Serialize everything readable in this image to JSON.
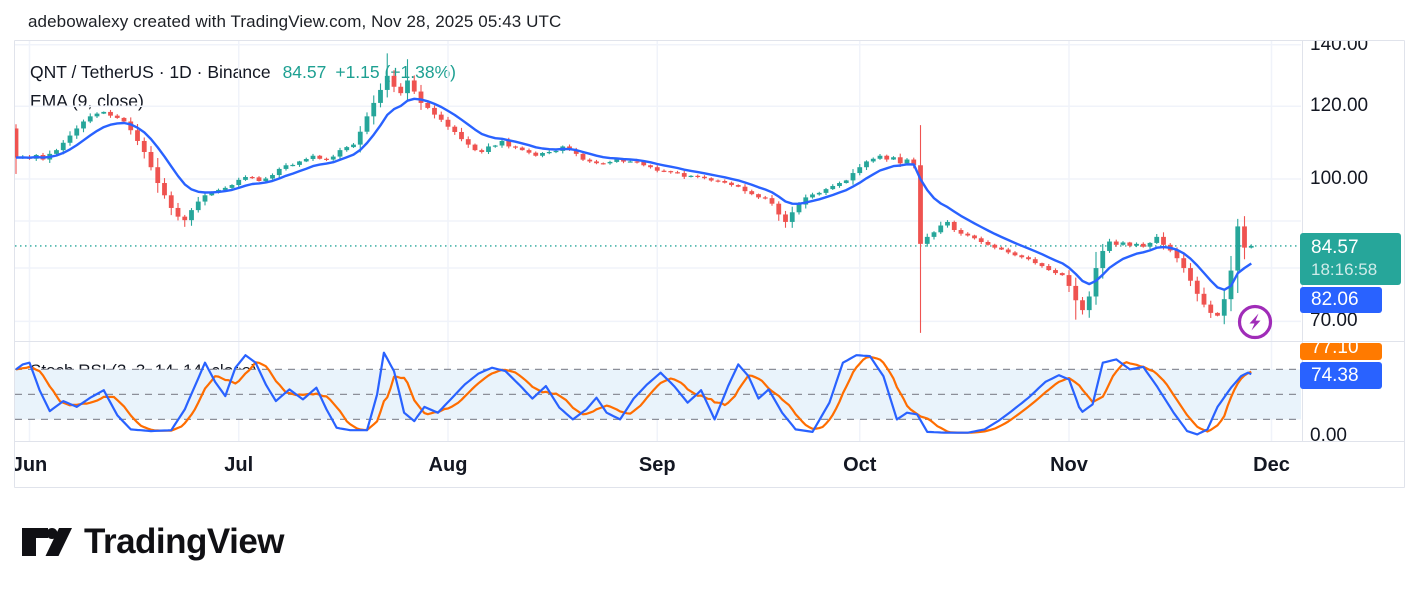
{
  "attribution": "adebowalexy created with TradingView.com, Nov 28, 2025 05:43 UTC",
  "header": {
    "symbol": "QNT / TetherUS · 1D · Binance",
    "price": "84.57",
    "change": "+1.15 (+1.38%)",
    "ema_label": "EMA (9, close)"
  },
  "stoch_label": "Stoch RSI (3, 3, 14, 14, close)",
  "colors": {
    "up": "#26A69A",
    "down": "#EF5350",
    "ema": "#2962FF",
    "stoch_k": "#2962FF",
    "stoch_d": "#FF6D00",
    "price_line": "#26A69A",
    "grid": "#F0F3FA",
    "border": "#E0E3EB",
    "band_fill": "#E9F3FB",
    "dash": "#8C8F99",
    "flash": "#A02CB8",
    "text": "#131722"
  },
  "price_scale": {
    "ticks": [
      {
        "label": "140.00",
        "value": 140
      },
      {
        "label": "120.00",
        "value": 120
      },
      {
        "label": "100.00",
        "value": 100
      },
      {
        "label": "70.00",
        "value": 70
      }
    ],
    "stoch_tick": {
      "label": "0.00",
      "value": 0
    },
    "badges": {
      "last": {
        "text": "84.57",
        "countdown": "18:16:58"
      },
      "ema": {
        "text": "82.06"
      },
      "stoch_d": {
        "text": "77.10"
      },
      "stoch_k": {
        "text": "74.38"
      }
    }
  },
  "time_scale": {
    "ticks": [
      {
        "label": "Jun",
        "day": 2
      },
      {
        "label": "Jul",
        "day": 33
      },
      {
        "label": "Aug",
        "day": 64
      },
      {
        "label": "Sep",
        "day": 95
      },
      {
        "label": "Oct",
        "day": 125
      },
      {
        "label": "Nov",
        "day": 156
      },
      {
        "label": "Dec",
        "day": 186
      }
    ]
  },
  "branding": {
    "logo_text": "TradingView"
  },
  "chart_data": {
    "type": "candlestick",
    "title": "QNT / TetherUS · 1D · Binance",
    "interval": "1D",
    "last_price": 84.57,
    "change": "+1.15 (+1.38%)",
    "price_axis": {
      "scale": "log",
      "visible_labels": [
        140,
        120,
        100,
        70
      ]
    },
    "current_price_line": 84.57,
    "ema": {
      "length": 9,
      "last_value": 82.06
    },
    "total_days": 184,
    "first_open": 113.5,
    "close_anchors": [
      [
        0,
        105.5
      ],
      [
        1,
        105.8
      ],
      [
        2,
        105.2
      ],
      [
        3,
        106.2
      ],
      [
        4,
        105.0
      ],
      [
        5,
        106.5
      ],
      [
        6,
        107.5
      ],
      [
        7,
        109.5
      ],
      [
        8,
        111.5
      ],
      [
        9,
        113.5
      ],
      [
        10,
        115.5
      ],
      [
        11,
        117.0
      ],
      [
        12,
        117.8
      ],
      [
        13,
        118.3
      ],
      [
        14,
        117.2
      ],
      [
        16,
        115.5
      ],
      [
        17,
        113.0
      ],
      [
        18,
        110.0
      ],
      [
        19,
        107.0
      ],
      [
        20,
        103.0
      ],
      [
        21,
        99.0
      ],
      [
        22,
        96.0
      ],
      [
        23,
        93.0
      ],
      [
        24,
        91.0
      ],
      [
        25,
        90.2
      ],
      [
        26,
        92.5
      ],
      [
        27,
        94.5
      ],
      [
        28,
        96.0
      ],
      [
        29,
        96.8
      ],
      [
        30,
        97.3
      ],
      [
        31,
        97.8
      ],
      [
        32,
        98.5
      ],
      [
        34,
        100.5
      ],
      [
        36,
        99.5
      ],
      [
        38,
        101.0
      ],
      [
        40,
        103.5
      ],
      [
        42,
        104.5
      ],
      [
        44,
        106.0
      ],
      [
        46,
        105.0
      ],
      [
        48,
        107.5
      ],
      [
        50,
        109.0
      ],
      [
        52,
        117.0
      ],
      [
        53,
        121.0
      ],
      [
        54,
        125.0
      ],
      [
        55,
        129.5
      ],
      [
        56,
        126.0
      ],
      [
        57,
        124.0
      ],
      [
        58,
        128.0
      ],
      [
        59,
        124.5
      ],
      [
        60,
        121.0
      ],
      [
        61,
        119.5
      ],
      [
        62,
        117.5
      ],
      [
        63,
        116.0
      ],
      [
        64,
        114.0
      ],
      [
        65,
        112.5
      ],
      [
        66,
        110.5
      ],
      [
        67,
        109.0
      ],
      [
        68,
        107.5
      ],
      [
        69,
        107.0
      ],
      [
        70,
        108.5
      ],
      [
        72,
        110.0
      ],
      [
        73,
        108.5
      ],
      [
        75,
        107.5
      ],
      [
        77,
        106.0
      ],
      [
        79,
        107.0
      ],
      [
        81,
        108.5
      ],
      [
        83,
        106.5
      ],
      [
        85,
        104.5
      ],
      [
        87,
        104.0
      ],
      [
        89,
        105.0
      ],
      [
        91,
        104.5
      ],
      [
        93,
        103.5
      ],
      [
        94,
        103.0
      ],
      [
        96,
        102.0
      ],
      [
        98,
        101.5
      ],
      [
        100,
        100.8
      ],
      [
        102,
        100.2
      ],
      [
        104,
        99.5
      ],
      [
        106,
        98.5
      ],
      [
        108,
        97.0
      ],
      [
        110,
        95.5
      ],
      [
        112,
        94.0
      ],
      [
        113,
        91.5
      ],
      [
        114,
        89.8
      ],
      [
        115,
        92.0
      ],
      [
        116,
        93.8
      ],
      [
        117,
        95.5
      ],
      [
        118,
        96.2
      ],
      [
        120,
        97.5
      ],
      [
        122,
        99.0
      ],
      [
        124,
        101.5
      ],
      [
        125,
        103.0
      ],
      [
        126,
        104.5
      ],
      [
        127,
        105.2
      ],
      [
        128,
        106.0
      ],
      [
        129,
        105.0
      ],
      [
        130,
        105.6
      ],
      [
        131,
        104.0
      ],
      [
        132,
        105.0
      ],
      [
        133,
        103.5
      ],
      [
        134,
        85.0
      ],
      [
        135,
        86.5
      ],
      [
        136,
        87.5
      ],
      [
        137,
        89.0
      ],
      [
        138,
        89.8
      ],
      [
        139,
        88.0
      ],
      [
        140,
        87.2
      ],
      [
        141,
        86.8
      ],
      [
        142,
        86.2
      ],
      [
        143,
        85.4
      ],
      [
        144,
        84.8
      ],
      [
        145,
        84.2
      ],
      [
        146,
        83.8
      ],
      [
        147,
        83.2
      ],
      [
        148,
        82.6
      ],
      [
        149,
        82.2
      ],
      [
        150,
        81.8
      ],
      [
        151,
        81.0
      ],
      [
        152,
        80.4
      ],
      [
        153,
        79.6
      ],
      [
        154,
        79.0
      ],
      [
        155,
        78.6
      ],
      [
        156,
        76.5
      ],
      [
        157,
        73.8
      ],
      [
        158,
        72.0
      ],
      [
        159,
        74.5
      ],
      [
        160,
        80.0
      ],
      [
        161,
        83.5
      ],
      [
        162,
        85.5
      ],
      [
        163,
        84.8
      ],
      [
        164,
        85.3
      ],
      [
        165,
        84.6
      ],
      [
        166,
        85.0
      ],
      [
        167,
        84.4
      ],
      [
        168,
        85.2
      ],
      [
        169,
        86.5
      ],
      [
        170,
        84.8
      ],
      [
        171,
        83.6
      ],
      [
        172,
        82.0
      ],
      [
        173,
        80.0
      ],
      [
        174,
        77.5
      ],
      [
        175,
        75.0
      ],
      [
        176,
        73.0
      ],
      [
        177,
        71.5
      ],
      [
        178,
        71.0
      ],
      [
        179,
        74.0
      ],
      [
        180,
        79.5
      ],
      [
        181,
        88.8
      ],
      [
        182,
        84.2
      ],
      [
        183,
        84.57
      ]
    ],
    "wick_overrides": {
      "25": {
        "low": 88.7
      },
      "55": {
        "high": 137.0
      },
      "58": {
        "high": 135.0
      },
      "114": {
        "low": 88.5
      },
      "134": {
        "low": 68.0
      },
      "157": {
        "low": 70.3
      },
      "179": {
        "low": 69.5
      }
    },
    "stoch_rsi": {
      "params": "3, 3, 14, 14, close",
      "k_last": 74.38,
      "d_last": 77.1,
      "levels": [
        80,
        50,
        20
      ],
      "range": [
        0,
        100
      ],
      "k_anchors": [
        [
          0,
          80
        ],
        [
          1,
          86
        ],
        [
          2,
          88
        ],
        [
          3.5,
          55
        ],
        [
          5,
          30
        ],
        [
          7,
          42
        ],
        [
          9,
          35
        ],
        [
          11,
          46
        ],
        [
          13,
          55
        ],
        [
          15,
          25
        ],
        [
          17,
          8
        ],
        [
          20,
          6
        ],
        [
          23,
          7
        ],
        [
          25,
          32
        ],
        [
          26.5,
          60
        ],
        [
          28,
          88
        ],
        [
          29.5,
          65
        ],
        [
          31,
          48
        ],
        [
          32.5,
          82
        ],
        [
          34,
          97
        ],
        [
          35.5,
          88
        ],
        [
          37,
          62
        ],
        [
          38.5,
          42
        ],
        [
          40.5,
          56
        ],
        [
          42.5,
          44
        ],
        [
          44.5,
          58
        ],
        [
          46,
          32
        ],
        [
          47.5,
          10
        ],
        [
          49.5,
          7
        ],
        [
          52,
          7
        ],
        [
          53.5,
          50
        ],
        [
          54.5,
          100
        ],
        [
          56,
          78
        ],
        [
          57.5,
          28
        ],
        [
          59,
          18
        ],
        [
          60.5,
          35
        ],
        [
          62.5,
          28
        ],
        [
          64.5,
          45
        ],
        [
          66.5,
          62
        ],
        [
          68.5,
          75
        ],
        [
          70.5,
          82
        ],
        [
          72.5,
          78
        ],
        [
          74.5,
          62
        ],
        [
          76.5,
          45
        ],
        [
          78.5,
          60
        ],
        [
          80.5,
          34
        ],
        [
          82.5,
          20
        ],
        [
          84.5,
          32
        ],
        [
          86,
          46
        ],
        [
          87.5,
          28
        ],
        [
          89.5,
          20
        ],
        [
          91.5,
          45
        ],
        [
          93.5,
          62
        ],
        [
          95.5,
          76
        ],
        [
          97.5,
          60
        ],
        [
          99.5,
          40
        ],
        [
          101.5,
          55
        ],
        [
          103.5,
          20
        ],
        [
          105.5,
          60
        ],
        [
          107,
          86
        ],
        [
          108.5,
          72
        ],
        [
          110,
          45
        ],
        [
          111.5,
          56
        ],
        [
          113.5,
          28
        ],
        [
          115.5,
          8
        ],
        [
          118,
          5
        ],
        [
          120.5,
          40
        ],
        [
          122.5,
          88
        ],
        [
          124.5,
          97
        ],
        [
          126.5,
          96
        ],
        [
          128.5,
          72
        ],
        [
          130.5,
          20
        ],
        [
          132,
          28
        ],
        [
          133.5,
          26
        ],
        [
          135,
          5
        ],
        [
          138,
          4
        ],
        [
          141,
          4
        ],
        [
          143.5,
          8
        ],
        [
          145.5,
          18
        ],
        [
          147.5,
          30
        ],
        [
          150,
          46
        ],
        [
          152.5,
          65
        ],
        [
          154.5,
          73
        ],
        [
          156,
          68
        ],
        [
          157.8,
          28
        ],
        [
          159.5,
          38
        ],
        [
          161,
          88
        ],
        [
          163,
          92
        ],
        [
          165,
          80
        ],
        [
          167,
          83
        ],
        [
          169,
          60
        ],
        [
          171.5,
          28
        ],
        [
          173.5,
          6
        ],
        [
          175,
          2
        ],
        [
          176.5,
          8
        ],
        [
          178,
          35
        ],
        [
          180,
          58
        ],
        [
          181.5,
          72
        ],
        [
          182.5,
          76
        ],
        [
          183,
          74.38
        ]
      ]
    }
  }
}
